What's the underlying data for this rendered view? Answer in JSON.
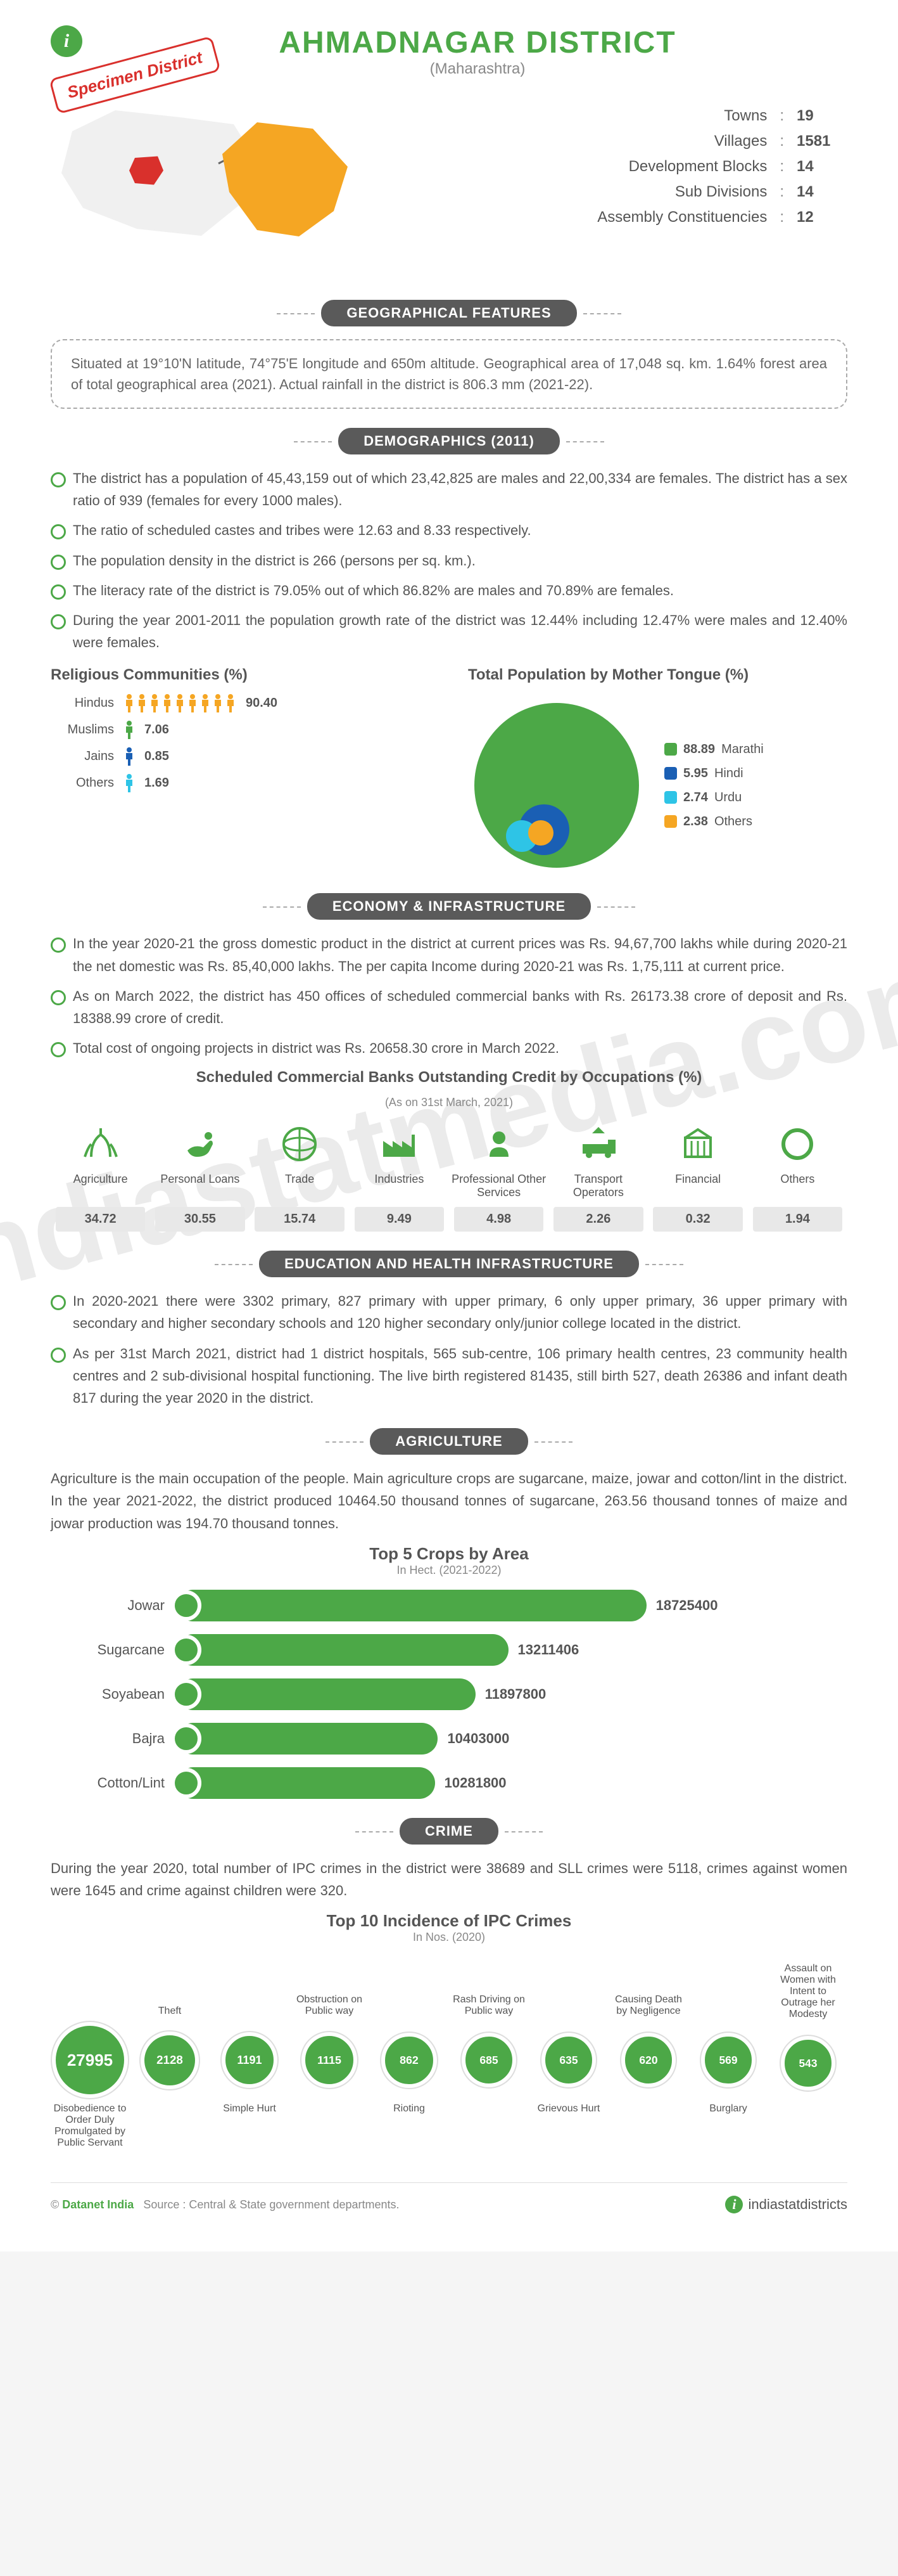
{
  "header": {
    "title": "AHMADNAGAR DISTRICT",
    "subtitle": "(Maharashtra)",
    "specimen": "Specimen District"
  },
  "colors": {
    "green": "#4ca847",
    "gray_header": "#5a5a5a",
    "orange": "#f5a623",
    "red": "#d9302c",
    "blue": "#1a5fb4",
    "cyan": "#2ec4e6",
    "light_gray": "#e8e8e8",
    "text": "#555555"
  },
  "stats": [
    {
      "label": "Towns",
      "value": "19"
    },
    {
      "label": "Villages",
      "value": "1581"
    },
    {
      "label": "Development Blocks",
      "value": "14"
    },
    {
      "label": "Sub Divisions",
      "value": "14"
    },
    {
      "label": "Assembly Constituencies",
      "value": "12"
    }
  ],
  "geo": {
    "header": "GEOGRAPHICAL FEATURES",
    "text": "Situated at 19°10'N latitude, 74°75'E longitude and 650m altitude. Geographical area of 17,048 sq. km. 1.64% forest area of total geographical area (2021). Actual rainfall in the district is 806.3 mm (2021-22)."
  },
  "demographics": {
    "header": "DEMOGRAPHICS (2011)",
    "bullets": [
      "The district has a population of 45,43,159 out of which 23,42,825 are males and 22,00,334 are females. The district has a sex ratio of 939 (females for every 1000 males).",
      "The ratio of scheduled castes and tribes were 12.63 and 8.33 respectively.",
      "The population density in the district is 266 (persons per sq. km.).",
      "The literacy rate of the district is 79.05% out of which 86.82% are males and 70.89% are females.",
      "During the year 2001-2011 the population growth rate of the district was 12.44% including 12.47% were males and 12.40% were females."
    ],
    "religious": {
      "title": "Religious Communities (%)",
      "rows": [
        {
          "label": "Hindus",
          "value": "90.40",
          "count": 9,
          "color": "#f5a623"
        },
        {
          "label": "Muslims",
          "value": "7.06",
          "count": 1,
          "color": "#4ca847"
        },
        {
          "label": "Jains",
          "value": "0.85",
          "count": 1,
          "color": "#1a5fb4"
        },
        {
          "label": "Others",
          "value": "1.69",
          "count": 1,
          "color": "#2ec4e6"
        }
      ]
    },
    "mothertongue": {
      "title": "Total Population by Mother Tongue (%)",
      "items": [
        {
          "label": "Marathi",
          "value": "88.89",
          "color": "#4ca847"
        },
        {
          "label": "Hindi",
          "value": "5.95",
          "color": "#1a5fb4"
        },
        {
          "label": "Urdu",
          "value": "2.74",
          "color": "#2ec4e6"
        },
        {
          "label": "Others",
          "value": "2.38",
          "color": "#f5a623"
        }
      ]
    }
  },
  "economy": {
    "header": "ECONOMY & INFRASTRUCTURE",
    "bullets": [
      "In the year 2020-21 the gross domestic product in the district at current prices was Rs. 94,67,700 lakhs while during 2020-21 the net domestic was Rs. 85,40,000 lakhs. The per capita Income during 2020-21 was Rs. 1,75,111 at current price.",
      "As on March 2022, the district has 450 offices of scheduled commercial banks with Rs. 26173.38 crore of deposit and Rs. 18388.99 crore of credit.",
      "Total cost of ongoing projects in district was Rs. 20658.30 crore in March 2022."
    ],
    "credit": {
      "title": "Scheduled Commercial Banks Outstanding Credit by Occupations (%)",
      "subtitle": "(As on 31st March, 2021)",
      "items": [
        {
          "label": "Agriculture",
          "value": "34.72",
          "icon": "agriculture"
        },
        {
          "label": "Personal Loans",
          "value": "30.55",
          "icon": "personal"
        },
        {
          "label": "Trade",
          "value": "15.74",
          "icon": "trade"
        },
        {
          "label": "Industries",
          "value": "9.49",
          "icon": "industries"
        },
        {
          "label": "Professional Other Services",
          "value": "4.98",
          "icon": "professional"
        },
        {
          "label": "Transport Operators",
          "value": "2.26",
          "icon": "transport"
        },
        {
          "label": "Financial",
          "value": "0.32",
          "icon": "financial"
        },
        {
          "label": "Others",
          "value": "1.94",
          "icon": "others"
        }
      ]
    }
  },
  "education": {
    "header": "EDUCATION AND HEALTH INFRASTRUCTURE",
    "bullets": [
      "In 2020-2021 there were 3302 primary, 827 primary with upper primary, 6 only upper primary, 36 upper primary with secondary and higher secondary schools and 120 higher secondary only/junior college located in the district.",
      "As per 31st March 2021, district had 1 district hospitals, 565 sub-centre, 106 primary health centres, 23 community health centres and 2 sub-divisional hospital functioning. The live birth registered 81435, still birth 527, death 26386 and infant death 817 during the year 2020 in the district."
    ]
  },
  "agriculture": {
    "header": "AGRICULTURE",
    "text": "Agriculture is the main occupation of the people. Main agriculture crops are sugarcane, maize, jowar and cotton/lint in the district. In the year 2021-2022, the district produced 10464.50 thousand tonnes of sugarcane, 263.56 thousand tonnes of maize and jowar production was 194.70 thousand tonnes.",
    "chart": {
      "title": "Top 5 Crops by Area",
      "subtitle": "In Hect. (2021-2022)",
      "max": 18725400,
      "items": [
        {
          "label": "Jowar",
          "value": 18725400
        },
        {
          "label": "Sugarcane",
          "value": 13211406
        },
        {
          "label": "Soyabean",
          "value": 11897800
        },
        {
          "label": "Bajra",
          "value": 10403000
        },
        {
          "label": "Cotton/Lint",
          "value": 10281800
        }
      ]
    }
  },
  "crime": {
    "header": "CRIME",
    "text": "During the year 2020, total number of IPC crimes in the district were 38689 and SLL crimes were 5118, crimes against women were 1645 and crime against children were 320.",
    "chart": {
      "title": "Top 10 Incidence of IPC Crimes",
      "subtitle": "In Nos. (2020)",
      "max": 27995,
      "items": [
        {
          "label": "Disobedience to Order Duly Promulgated by Public Servant",
          "value": 27995,
          "pos": "bottom"
        },
        {
          "label": "Theft",
          "value": 2128,
          "pos": "top"
        },
        {
          "label": "Simple Hurt",
          "value": 1191,
          "pos": "bottom"
        },
        {
          "label": "Obstruction on Public way",
          "value": 1115,
          "pos": "top"
        },
        {
          "label": "Rioting",
          "value": 862,
          "pos": "bottom"
        },
        {
          "label": "Rash Driving on Public way",
          "value": 685,
          "pos": "top"
        },
        {
          "label": "Grievous Hurt",
          "value": 635,
          "pos": "bottom"
        },
        {
          "label": "Causing Death by Negligence",
          "value": 620,
          "pos": "top"
        },
        {
          "label": "Burglary",
          "value": 569,
          "pos": "bottom"
        },
        {
          "label": "Assault on Women with Intent to Outrage her Modesty",
          "value": 543,
          "pos": "top"
        }
      ]
    }
  },
  "footer": {
    "copyright_prefix": "© ",
    "copyright_name": "Datanet India",
    "source": "Source : Central & State government departments.",
    "logo_text": "indiastatdistricts"
  },
  "watermark": "indiastatmedia.com"
}
